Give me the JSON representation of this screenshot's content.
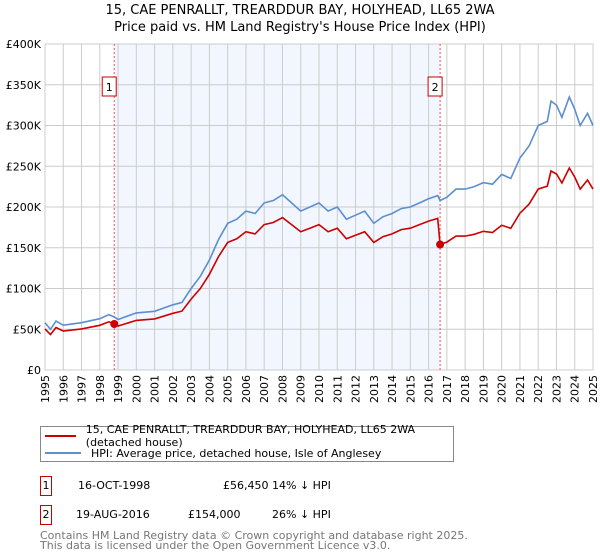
{
  "chart_data": {
    "type": "line",
    "title": "15, CAE PENRALLT, TREARDDUR BAY, HOLYHEAD, LL65 2WA",
    "subtitle": "Price paid vs. HM Land Registry's House Price Index (HPI)",
    "xlabel": "",
    "ylabel": "",
    "xlim": [
      1995,
      2025
    ],
    "ylim": [
      0,
      400000
    ],
    "grid": true,
    "y_ticks": [
      0,
      50000,
      100000,
      150000,
      200000,
      250000,
      300000,
      350000,
      400000
    ],
    "y_tick_labels": [
      "£0",
      "£50K",
      "£100K",
      "£150K",
      "£200K",
      "£250K",
      "£300K",
      "£350K",
      "£400K"
    ],
    "x_ticks": [
      "1995",
      "1996",
      "1997",
      "1998",
      "1999",
      "2000",
      "2001",
      "2002",
      "2003",
      "2004",
      "2005",
      "2006",
      "2007",
      "2008",
      "2009",
      "2010",
      "2011",
      "2012",
      "2013",
      "2014",
      "2015",
      "2016",
      "2017",
      "2018",
      "2019",
      "2020",
      "2021",
      "2022",
      "2023",
      "2024",
      "2025"
    ],
    "shaded_range": [
      1998.79,
      2016.63
    ],
    "x": [
      1995,
      1995.3,
      1995.6,
      1996,
      1997,
      1998,
      1998.5,
      1998.79,
      1999,
      2000,
      2001,
      2002,
      2002.5,
      2003,
      2003.5,
      2004,
      2004.5,
      2005,
      2005.5,
      2006,
      2006.5,
      2007,
      2007.5,
      2008,
      2008.5,
      2009,
      2009.5,
      2010,
      2010.5,
      2011,
      2011.5,
      2012,
      2012.5,
      2013,
      2013.5,
      2014,
      2014.5,
      2015,
      2015.5,
      2016,
      2016.5,
      2016.63,
      2017,
      2017.5,
      2018,
      2018.5,
      2019,
      2019.5,
      2020,
      2020.5,
      2021,
      2021.5,
      2022,
      2022.5,
      2022.7,
      2023,
      2023.3,
      2023.7,
      2024,
      2024.3,
      2024.7,
      2025
    ],
    "series": [
      {
        "name": "15, CAE PENRALLT, TREARDDUR BAY, HOLYHEAD, LL65 2WA (detached house)",
        "color": "#cc0000",
        "values": [
          50450,
          43500,
          52200,
          47850,
          50460,
          54810,
          59160,
          56450,
          53940,
          60900,
          62640,
          69600,
          72210,
          87000,
          100050,
          117450,
          139200,
          156600,
          160950,
          169650,
          167040,
          178350,
          180960,
          187050,
          178350,
          169650,
          174000,
          178350,
          169650,
          174000,
          160950,
          165300,
          169650,
          156600,
          163560,
          167040,
          172260,
          174000,
          178350,
          182700,
          186000,
          154000,
          156880,
          164280,
          164280,
          166500,
          170200,
          168720,
          177600,
          173900,
          192400,
          203500,
          222000,
          225700,
          244200,
          240500,
          229400,
          247900,
          236800,
          222000,
          233100,
          222000
        ]
      },
      {
        "name": "HPI: Average price, detached house, Isle of Anglesey",
        "color": "#5b8fd0",
        "values": [
          58000,
          50000,
          60000,
          55000,
          58000,
          63000,
          68000,
          65000,
          62000,
          70000,
          72000,
          80000,
          83000,
          100000,
          115000,
          135000,
          160000,
          180000,
          185000,
          195000,
          192000,
          205000,
          208000,
          215000,
          205000,
          195000,
          200000,
          205000,
          195000,
          200000,
          185000,
          190000,
          195000,
          180000,
          188000,
          192000,
          198000,
          200000,
          205000,
          210000,
          214000,
          208000,
          212000,
          222000,
          222000,
          225000,
          230000,
          228000,
          240000,
          235000,
          260000,
          275000,
          300000,
          305000,
          330000,
          325000,
          310000,
          335000,
          320000,
          300000,
          315000,
          300000
        ]
      }
    ],
    "annotations": [
      {
        "label": "1",
        "x": 1998.79,
        "y": 56450
      },
      {
        "label": "2",
        "x": 2016.63,
        "y": 154000
      }
    ]
  },
  "legend": {
    "red": "15, CAE PENRALLT, TREARDDUR BAY, HOLYHEAD, LL65 2WA (detached house)",
    "blue": "HPI: Average price, detached house, Isle of Anglesey"
  },
  "sales": [
    {
      "num": "1",
      "date": "16-OCT-1998",
      "price": "£56,450",
      "hpi": "14% ↓ HPI"
    },
    {
      "num": "2",
      "date": "19-AUG-2016",
      "price": "£154,000",
      "hpi": "26% ↓ HPI"
    }
  ],
  "footer": {
    "line1": "Contains HM Land Registry data © Crown copyright and database right 2025.",
    "line2": "This data is licensed under the Open Government Licence v3.0."
  }
}
